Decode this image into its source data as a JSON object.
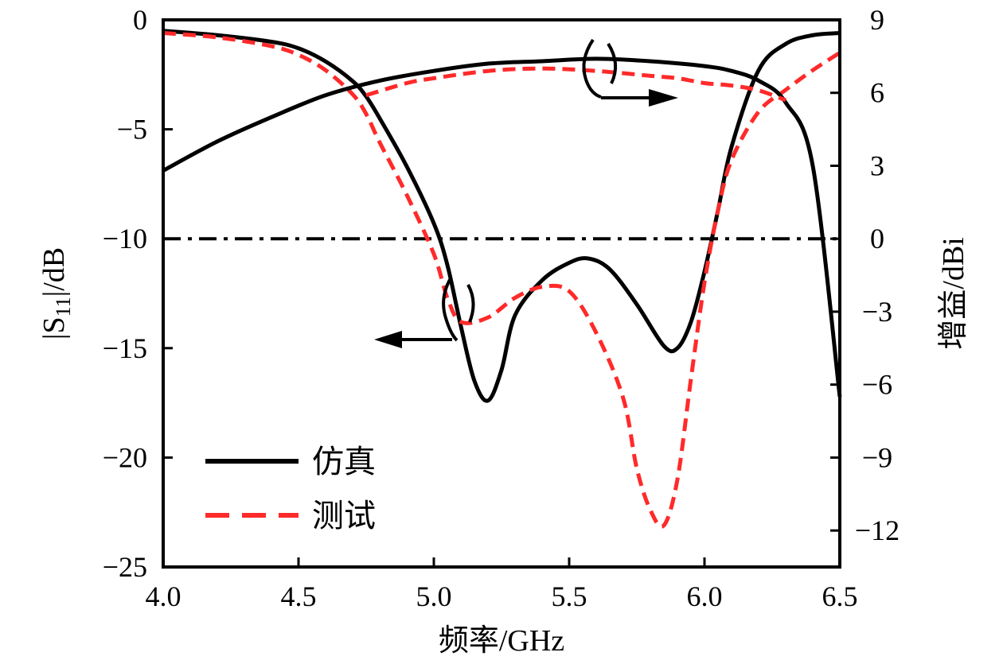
{
  "chart_data": {
    "type": "line",
    "xlabel": "频率/GHz",
    "ylabel_left_prefix": "|S",
    "ylabel_left_subscript": "11",
    "ylabel_left_suffix": "|/dB",
    "ylabel_right": "增益/dBi",
    "xlim": [
      4.0,
      6.5
    ],
    "ylim_left": [
      -25,
      0
    ],
    "ylim_right": [
      -13.5,
      9
    ],
    "x_ticks": [
      "4.0",
      "4.5",
      "5.0",
      "5.5",
      "6.0",
      "6.5"
    ],
    "x_tick_values": [
      4.0,
      4.5,
      5.0,
      5.5,
      6.0,
      6.5
    ],
    "y_left_ticks": [
      "0",
      "−5",
      "−10",
      "−15",
      "−20",
      "−25"
    ],
    "y_left_tick_values": [
      0,
      -5,
      -10,
      -15,
      -20,
      -25
    ],
    "y_right_ticks": [
      "9",
      "6",
      "3",
      "0",
      "−3",
      "−6",
      "−9",
      "−12"
    ],
    "y_right_tick_values": [
      9,
      6,
      3,
      0,
      -3,
      -6,
      -9,
      -12
    ],
    "legend": [
      {
        "name": "仿真",
        "color": "#000000",
        "style": "solid"
      },
      {
        "name": "测试",
        "color": "#ff2a2a",
        "style": "dashed"
      }
    ],
    "legend_position": "bottom-left",
    "reference_line": {
      "axis": "left",
      "y": -10,
      "style": "dash-dot",
      "color": "#000000"
    },
    "series": [
      {
        "name": "仿真",
        "quantity": "S11",
        "axis": "left",
        "color": "#000000",
        "style": "solid",
        "x": [
          4.0,
          4.2,
          4.4,
          4.5,
          4.6,
          4.7,
          4.75,
          4.8,
          4.9,
          5.0,
          5.05,
          5.1,
          5.15,
          5.2,
          5.25,
          5.3,
          5.4,
          5.5,
          5.57,
          5.65,
          5.75,
          5.85,
          5.9,
          5.95,
          6.0,
          6.05,
          6.1,
          6.2,
          6.3,
          6.4,
          6.5
        ],
        "y": [
          -0.5,
          -0.7,
          -1.0,
          -1.3,
          -1.9,
          -2.8,
          -3.5,
          -4.5,
          -6.7,
          -9.3,
          -11.2,
          -14.0,
          -16.5,
          -17.4,
          -16.0,
          -13.5,
          -11.9,
          -11.1,
          -10.9,
          -11.4,
          -13.0,
          -14.9,
          -15.0,
          -13.8,
          -11.5,
          -8.7,
          -5.8,
          -2.3,
          -1.1,
          -0.7,
          -0.6
        ]
      },
      {
        "name": "测试",
        "quantity": "S11",
        "axis": "left",
        "color": "#ff2a2a",
        "style": "dashed",
        "x": [
          4.0,
          4.2,
          4.4,
          4.5,
          4.6,
          4.7,
          4.75,
          4.8,
          4.9,
          5.0,
          5.05,
          5.1,
          5.2,
          5.3,
          5.4,
          5.5,
          5.6,
          5.7,
          5.75,
          5.8,
          5.85,
          5.9,
          5.95,
          6.0,
          6.05,
          6.1,
          6.2,
          6.3,
          6.4,
          6.5
        ],
        "y": [
          -0.6,
          -0.8,
          -1.2,
          -1.6,
          -2.3,
          -3.4,
          -4.3,
          -5.6,
          -8.0,
          -10.7,
          -12.7,
          -13.8,
          -13.6,
          -12.7,
          -12.2,
          -12.4,
          -14.3,
          -17.3,
          -20.5,
          -22.4,
          -23.1,
          -21.0,
          -16.4,
          -12.0,
          -8.7,
          -6.4,
          -4.2,
          -3.2,
          -2.3,
          -1.5
        ]
      },
      {
        "name": "仿真",
        "quantity": "增益",
        "axis": "right",
        "color": "#000000",
        "style": "solid",
        "x": [
          4.0,
          4.2,
          4.4,
          4.6,
          4.8,
          5.0,
          5.2,
          5.4,
          5.6,
          5.8,
          6.0,
          6.1,
          6.2,
          6.3,
          6.4,
          6.5
        ],
        "y": [
          2.8,
          4.0,
          5.0,
          5.9,
          6.5,
          6.9,
          7.2,
          7.3,
          7.4,
          7.3,
          7.1,
          6.9,
          6.5,
          5.6,
          3.0,
          -6.5
        ]
      },
      {
        "name": "测试",
        "quantity": "增益",
        "axis": "right",
        "color": "#ff2a2a",
        "style": "dashed",
        "x": [
          4.75,
          4.9,
          5.0,
          5.2,
          5.4,
          5.6,
          5.8,
          5.9,
          6.0,
          6.1,
          6.2,
          6.3
        ],
        "y": [
          5.9,
          6.4,
          6.6,
          6.9,
          7.0,
          6.9,
          6.7,
          6.6,
          6.4,
          6.3,
          6.1,
          5.7
        ]
      }
    ],
    "annotations": [
      {
        "text": "←",
        "meaning": "S11 curves read on left axis",
        "x": 4.95,
        "y": -14.4
      },
      {
        "text": "→",
        "meaning": "gain curves read on right axis",
        "x": 5.85,
        "y": -3.0
      }
    ]
  }
}
